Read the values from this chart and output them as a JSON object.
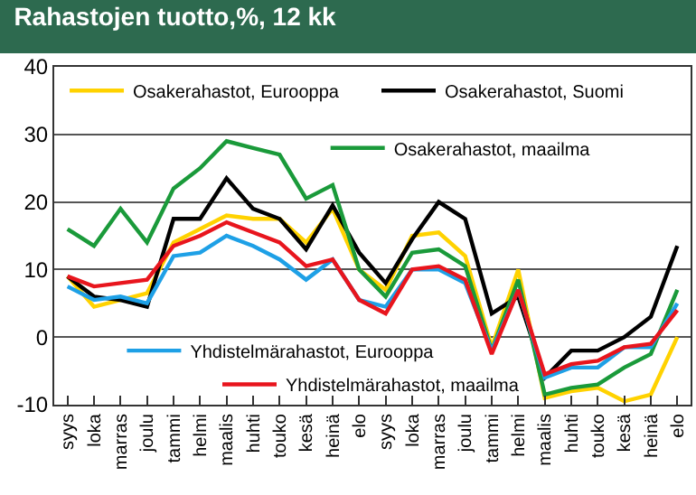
{
  "chart_data": {
    "type": "line",
    "title": "Rahastojen tuotto,%, 12 kk",
    "categories": [
      "syys",
      "loka",
      "marras",
      "joulu",
      "tammi",
      "helmi",
      "maalis",
      "huhti",
      "touko",
      "kesä",
      "heinä",
      "elo",
      "syys",
      "loka",
      "marras",
      "joulu",
      "tammi",
      "helmi",
      "maalis",
      "huhti",
      "touko",
      "kesä",
      "heinä",
      "elo"
    ],
    "series": [
      {
        "name": "Osakerahastot, Eurooppa",
        "color": "#ffd200",
        "values": [
          9,
          4.5,
          5.5,
          6.5,
          14,
          16,
          18,
          17.5,
          17.5,
          14,
          19,
          10,
          7,
          15,
          15.5,
          12,
          -1.5,
          10,
          -9,
          -8,
          -7.5,
          -9.5,
          -8.5,
          0
        ]
      },
      {
        "name": "Osakerahastot, Suomi",
        "color": "#000000",
        "values": [
          9,
          6,
          5.5,
          4.5,
          17.5,
          17.5,
          23.5,
          19,
          17.5,
          13,
          19.5,
          12.5,
          8,
          14.5,
          20,
          17.5,
          3.5,
          6,
          -6,
          -2,
          -2,
          0,
          3,
          13.5
        ]
      },
      {
        "name": "Osakerahastot, maailma",
        "color": "#1a9a3a",
        "values": [
          16,
          13.5,
          19,
          14,
          22,
          25,
          29,
          28,
          27,
          20.5,
          22.5,
          10,
          6,
          12.5,
          13,
          10.5,
          -2,
          8.5,
          -8.5,
          -7.5,
          -7,
          -4.5,
          -2.5,
          7
        ]
      },
      {
        "name": "Yhdistelmärahastot, Eurooppa",
        "color": "#1ea0e6",
        "values": [
          7.5,
          5.5,
          6,
          5,
          12,
          12.5,
          15,
          13.5,
          11.5,
          8.5,
          11.5,
          5.5,
          4.5,
          10,
          10,
          8,
          -2,
          7,
          -6,
          -4.5,
          -4.5,
          -1.5,
          -1.5,
          5
        ]
      },
      {
        "name": "Yhdistelmärahastot, maailma",
        "color": "#e8151d",
        "values": [
          9,
          7.5,
          8,
          8.5,
          13.5,
          15,
          17,
          15.5,
          14,
          10.5,
          11.5,
          5.5,
          3.5,
          10,
          10.5,
          8.5,
          -2.5,
          7,
          -5.5,
          -4,
          -3.5,
          -1.5,
          -1,
          4
        ]
      }
    ],
    "ylim": [
      -10,
      40
    ],
    "yticks": [
      -10,
      0,
      10,
      20,
      30,
      40
    ],
    "grid": "y",
    "legend": "left",
    "marker": "none",
    "line_style": "solid"
  }
}
